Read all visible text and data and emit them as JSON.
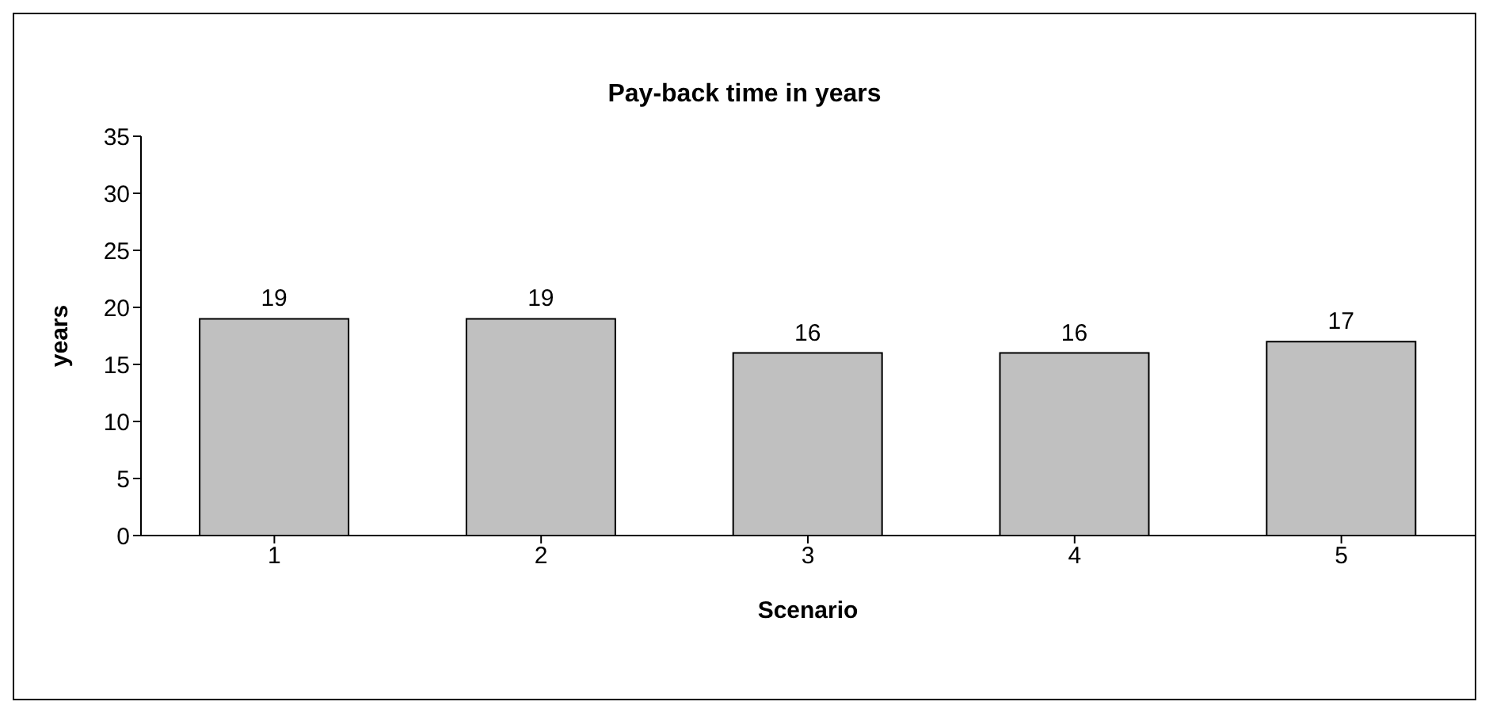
{
  "chart_data": {
    "type": "bar",
    "title": "Pay-back time in years",
    "xlabel": "Scenario",
    "ylabel": "years",
    "categories": [
      "1",
      "2",
      "3",
      "4",
      "5"
    ],
    "values": [
      19,
      19,
      16,
      16,
      17
    ],
    "color": "#c0c0c0",
    "ylim": [
      0,
      35
    ],
    "yticks": [
      0,
      5,
      10,
      15,
      20,
      25,
      30,
      35
    ],
    "data_labels": true
  }
}
